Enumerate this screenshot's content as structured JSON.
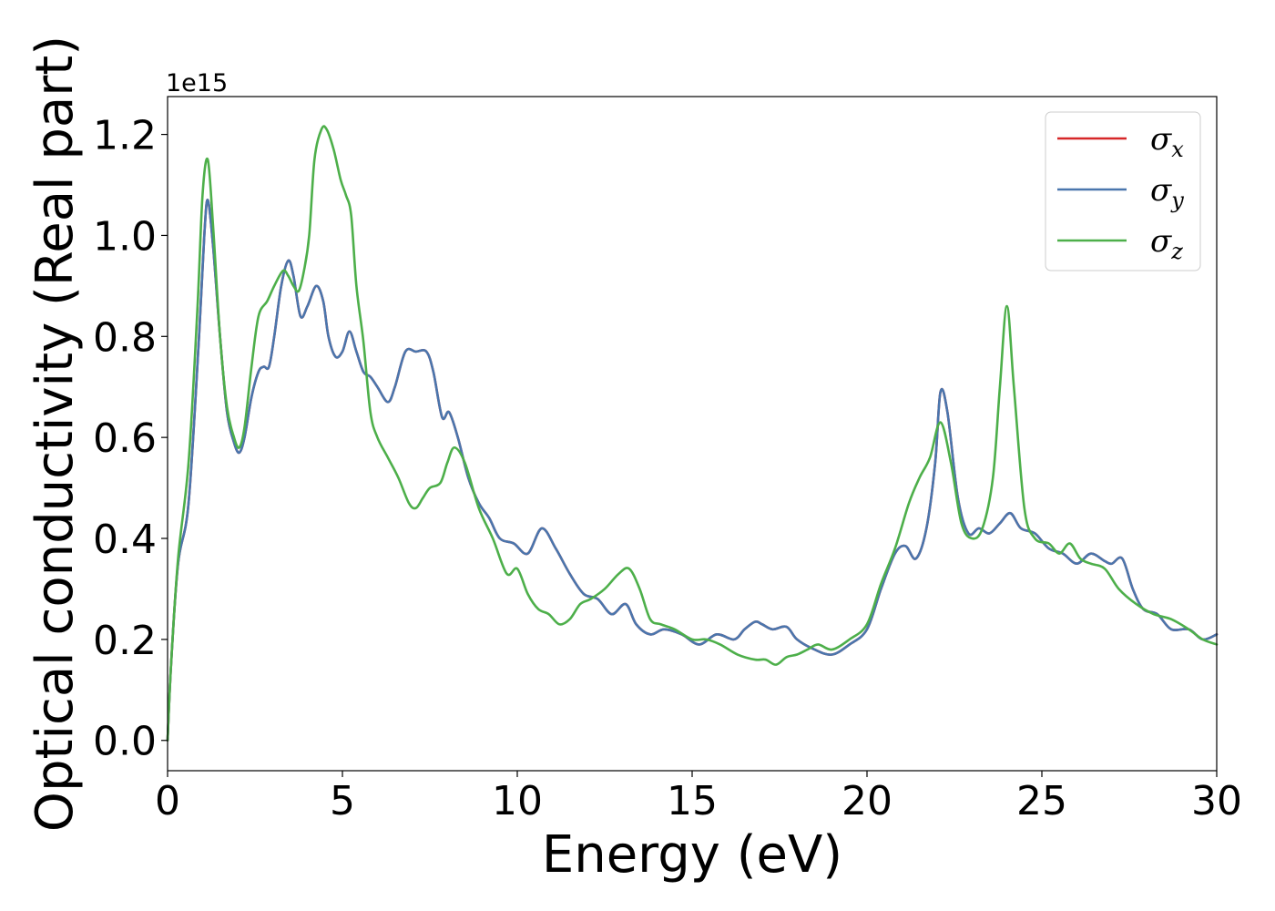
{
  "chart_data": {
    "type": "line",
    "xlabel": "Energy (eV)",
    "ylabel": "Optical conductivity (Real part)",
    "y_offset_label": "1e15",
    "xlim": [
      0,
      30
    ],
    "ylim": [
      -0.06,
      1.275
    ],
    "x_ticks": [
      0,
      5,
      10,
      15,
      20,
      25,
      30
    ],
    "x_tick_labels": [
      "0",
      "5",
      "10",
      "15",
      "20",
      "25",
      "30"
    ],
    "y_ticks": [
      0.0,
      0.2,
      0.4,
      0.6,
      0.8,
      1.0,
      1.2
    ],
    "y_tick_labels": [
      "0.0",
      "0.2",
      "0.4",
      "0.6",
      "0.8",
      "1.0",
      "1.2"
    ],
    "grid": false,
    "legend_position": "top-right",
    "series": [
      {
        "name": "σx",
        "symbol": "σ",
        "subscript": "x",
        "color": "#d62728",
        "x": [
          0,
          0.1,
          0.3,
          0.6,
          0.9,
          1.05,
          1.15,
          1.3,
          1.5,
          1.7,
          1.9,
          2.05,
          2.2,
          2.4,
          2.6,
          2.75,
          2.9,
          3.05,
          3.25,
          3.45,
          3.6,
          3.8,
          4.0,
          4.25,
          4.45,
          4.6,
          4.8,
          5.0,
          5.2,
          5.4,
          5.6,
          5.8,
          6.0,
          6.3,
          6.5,
          6.8,
          7.1,
          7.4,
          7.6,
          7.85,
          8.05,
          8.3,
          8.6,
          8.9,
          9.2,
          9.5,
          9.9,
          10.3,
          10.7,
          11.1,
          11.5,
          11.9,
          12.3,
          12.7,
          13.1,
          13.4,
          13.8,
          14.2,
          14.7,
          15.2,
          15.7,
          16.2,
          16.5,
          16.8,
          17.0,
          17.3,
          17.7,
          18.0,
          18.5,
          19.0,
          19.5,
          20.0,
          20.4,
          20.8,
          21.1,
          21.4,
          21.7,
          21.95,
          22.1,
          22.3,
          22.6,
          22.9,
          23.2,
          23.5,
          23.8,
          24.1,
          24.4,
          24.8,
          25.2,
          25.6,
          26.0,
          26.4,
          26.8,
          27.0,
          27.3,
          27.6,
          27.9,
          28.3,
          28.7,
          29.2,
          29.6,
          30.0
        ],
        "values": [
          0.0,
          0.15,
          0.35,
          0.47,
          0.8,
          1.0,
          1.07,
          0.98,
          0.8,
          0.65,
          0.59,
          0.57,
          0.6,
          0.68,
          0.73,
          0.74,
          0.74,
          0.8,
          0.9,
          0.95,
          0.92,
          0.84,
          0.86,
          0.9,
          0.87,
          0.8,
          0.76,
          0.77,
          0.81,
          0.77,
          0.73,
          0.72,
          0.7,
          0.67,
          0.7,
          0.77,
          0.77,
          0.77,
          0.73,
          0.64,
          0.65,
          0.6,
          0.52,
          0.47,
          0.44,
          0.4,
          0.39,
          0.37,
          0.42,
          0.38,
          0.33,
          0.29,
          0.28,
          0.25,
          0.27,
          0.23,
          0.21,
          0.22,
          0.21,
          0.19,
          0.21,
          0.2,
          0.22,
          0.235,
          0.23,
          0.22,
          0.225,
          0.2,
          0.18,
          0.17,
          0.19,
          0.22,
          0.3,
          0.37,
          0.385,
          0.36,
          0.42,
          0.55,
          0.69,
          0.65,
          0.48,
          0.41,
          0.42,
          0.41,
          0.43,
          0.45,
          0.42,
          0.41,
          0.38,
          0.37,
          0.35,
          0.37,
          0.355,
          0.35,
          0.36,
          0.3,
          0.26,
          0.25,
          0.22,
          0.22,
          0.2,
          0.21
        ]
      },
      {
        "name": "σy",
        "symbol": "σ",
        "subscript": "y",
        "color": "#4a76ad",
        "x": [
          0,
          0.1,
          0.3,
          0.6,
          0.9,
          1.05,
          1.15,
          1.3,
          1.5,
          1.7,
          1.9,
          2.05,
          2.2,
          2.4,
          2.6,
          2.75,
          2.9,
          3.05,
          3.25,
          3.45,
          3.6,
          3.8,
          4.0,
          4.25,
          4.45,
          4.6,
          4.8,
          5.0,
          5.2,
          5.4,
          5.6,
          5.8,
          6.0,
          6.3,
          6.5,
          6.8,
          7.1,
          7.4,
          7.6,
          7.85,
          8.05,
          8.3,
          8.6,
          8.9,
          9.2,
          9.5,
          9.9,
          10.3,
          10.7,
          11.1,
          11.5,
          11.9,
          12.3,
          12.7,
          13.1,
          13.4,
          13.8,
          14.2,
          14.7,
          15.2,
          15.7,
          16.2,
          16.5,
          16.8,
          17.0,
          17.3,
          17.7,
          18.0,
          18.5,
          19.0,
          19.5,
          20.0,
          20.4,
          20.8,
          21.1,
          21.4,
          21.7,
          21.95,
          22.1,
          22.3,
          22.6,
          22.9,
          23.2,
          23.5,
          23.8,
          24.1,
          24.4,
          24.8,
          25.2,
          25.6,
          26.0,
          26.4,
          26.8,
          27.0,
          27.3,
          27.6,
          27.9,
          28.3,
          28.7,
          29.2,
          29.6,
          30.0
        ],
        "values": [
          0.0,
          0.15,
          0.35,
          0.47,
          0.8,
          1.0,
          1.07,
          0.98,
          0.8,
          0.65,
          0.59,
          0.57,
          0.6,
          0.68,
          0.73,
          0.74,
          0.74,
          0.8,
          0.9,
          0.95,
          0.92,
          0.84,
          0.86,
          0.9,
          0.87,
          0.8,
          0.76,
          0.77,
          0.81,
          0.77,
          0.73,
          0.72,
          0.7,
          0.67,
          0.7,
          0.77,
          0.77,
          0.77,
          0.73,
          0.64,
          0.65,
          0.6,
          0.52,
          0.47,
          0.44,
          0.4,
          0.39,
          0.37,
          0.42,
          0.38,
          0.33,
          0.29,
          0.28,
          0.25,
          0.27,
          0.23,
          0.21,
          0.22,
          0.21,
          0.19,
          0.21,
          0.2,
          0.22,
          0.235,
          0.23,
          0.22,
          0.225,
          0.2,
          0.18,
          0.17,
          0.19,
          0.22,
          0.3,
          0.37,
          0.385,
          0.36,
          0.42,
          0.55,
          0.69,
          0.65,
          0.48,
          0.41,
          0.42,
          0.41,
          0.43,
          0.45,
          0.42,
          0.41,
          0.38,
          0.37,
          0.35,
          0.37,
          0.355,
          0.35,
          0.36,
          0.3,
          0.26,
          0.25,
          0.22,
          0.22,
          0.2,
          0.21
        ]
      },
      {
        "name": "σz",
        "symbol": "σ",
        "subscript": "z",
        "color": "#4daf4a",
        "x": [
          0,
          0.1,
          0.3,
          0.6,
          0.85,
          1.0,
          1.15,
          1.3,
          1.5,
          1.7,
          1.9,
          2.05,
          2.2,
          2.4,
          2.6,
          2.85,
          3.05,
          3.3,
          3.45,
          3.6,
          3.75,
          3.9,
          4.05,
          4.2,
          4.4,
          4.55,
          4.75,
          4.95,
          5.1,
          5.25,
          5.4,
          5.6,
          5.8,
          6.0,
          6.3,
          6.6,
          6.9,
          7.1,
          7.3,
          7.5,
          7.8,
          8.0,
          8.2,
          8.5,
          8.9,
          9.3,
          9.7,
          10.0,
          10.3,
          10.6,
          10.9,
          11.2,
          11.5,
          11.8,
          12.1,
          12.5,
          12.9,
          13.2,
          13.5,
          13.8,
          14.1,
          14.5,
          15.0,
          15.4,
          15.8,
          16.3,
          16.8,
          17.1,
          17.4,
          17.7,
          18.0,
          18.3,
          18.6,
          19.0,
          19.5,
          20.0,
          20.4,
          20.8,
          21.2,
          21.5,
          21.8,
          22.1,
          22.4,
          22.7,
          23.0,
          23.3,
          23.6,
          23.8,
          24.0,
          24.2,
          24.5,
          24.8,
          25.2,
          25.5,
          25.8,
          26.1,
          26.4,
          26.8,
          27.2,
          27.7,
          28.2,
          28.7,
          29.2,
          29.6,
          30.0
        ],
        "values": [
          0.0,
          0.15,
          0.36,
          0.55,
          0.85,
          1.08,
          1.15,
          1.02,
          0.8,
          0.66,
          0.6,
          0.58,
          0.62,
          0.74,
          0.84,
          0.87,
          0.9,
          0.93,
          0.92,
          0.9,
          0.89,
          0.93,
          1.0,
          1.15,
          1.21,
          1.21,
          1.17,
          1.11,
          1.08,
          1.04,
          0.9,
          0.79,
          0.65,
          0.6,
          0.56,
          0.52,
          0.47,
          0.46,
          0.48,
          0.5,
          0.51,
          0.55,
          0.58,
          0.55,
          0.46,
          0.4,
          0.33,
          0.34,
          0.29,
          0.26,
          0.25,
          0.23,
          0.24,
          0.27,
          0.28,
          0.3,
          0.33,
          0.34,
          0.3,
          0.24,
          0.23,
          0.22,
          0.2,
          0.2,
          0.19,
          0.17,
          0.16,
          0.16,
          0.15,
          0.165,
          0.17,
          0.18,
          0.19,
          0.18,
          0.2,
          0.23,
          0.31,
          0.38,
          0.47,
          0.52,
          0.56,
          0.63,
          0.55,
          0.43,
          0.4,
          0.42,
          0.52,
          0.7,
          0.86,
          0.7,
          0.46,
          0.4,
          0.39,
          0.37,
          0.39,
          0.36,
          0.35,
          0.34,
          0.3,
          0.27,
          0.25,
          0.24,
          0.22,
          0.2,
          0.19
        ]
      }
    ]
  }
}
